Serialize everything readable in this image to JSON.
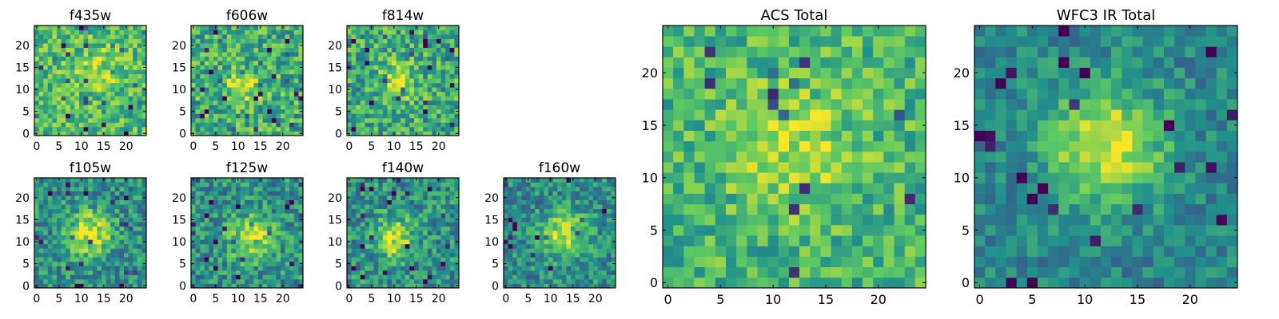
{
  "colormap": [
    "#440154",
    "#3b528b",
    "#21918c",
    "#5ec962",
    "#fde725"
  ],
  "chart_data": [
    {
      "type": "heatmap",
      "title": "f435w",
      "xticks": [
        0,
        5,
        10,
        15,
        20
      ],
      "yticks": [
        0,
        5,
        10,
        15,
        20
      ],
      "xlim": [
        -0.5,
        24.5
      ],
      "ylim": [
        -0.5,
        24.5
      ],
      "grid_size": [
        25,
        25
      ],
      "peak": {
        "x": 14,
        "y": 15,
        "sigma": 4.0,
        "amplitude": 0.15
      },
      "base_level": 0.68,
      "noise_level": 0.22
    },
    {
      "type": "heatmap",
      "title": "f606w",
      "xticks": [
        0,
        5,
        10,
        15,
        20
      ],
      "yticks": [
        0,
        5,
        10,
        15,
        20
      ],
      "xlim": [
        -0.5,
        24.5
      ],
      "ylim": [
        -0.5,
        24.5
      ],
      "grid_size": [
        25,
        25
      ],
      "peak": {
        "x": 11,
        "y": 11,
        "sigma": 3.0,
        "amplitude": 0.25
      },
      "base_level": 0.62,
      "noise_level": 0.25
    },
    {
      "type": "heatmap",
      "title": "f814w",
      "xticks": [
        0,
        5,
        10,
        15,
        20
      ],
      "yticks": [
        0,
        5,
        10,
        15,
        20
      ],
      "xlim": [
        -0.5,
        24.5
      ],
      "ylim": [
        -0.5,
        24.5
      ],
      "grid_size": [
        25,
        25
      ],
      "peak": {
        "x": 11,
        "y": 12,
        "sigma": 3.0,
        "amplitude": 0.3
      },
      "base_level": 0.6,
      "noise_level": 0.25
    },
    {
      "type": "heatmap",
      "title": "f105w",
      "xticks": [
        0,
        5,
        10,
        15,
        20
      ],
      "yticks": [
        0,
        5,
        10,
        15,
        20
      ],
      "xlim": [
        -0.5,
        24.5
      ],
      "ylim": [
        -0.5,
        24.5
      ],
      "grid_size": [
        25,
        25
      ],
      "peak": {
        "x": 12,
        "y": 12,
        "sigma": 3.5,
        "amplitude": 0.45
      },
      "base_level": 0.5,
      "noise_level": 0.22
    },
    {
      "type": "heatmap",
      "title": "f125w",
      "xticks": [
        0,
        5,
        10,
        15,
        20
      ],
      "yticks": [
        0,
        5,
        10,
        15,
        20
      ],
      "xlim": [
        -0.5,
        24.5
      ],
      "ylim": [
        -0.5,
        24.5
      ],
      "grid_size": [
        25,
        25
      ],
      "peak": {
        "x": 13,
        "y": 11,
        "sigma": 3.5,
        "amplitude": 0.4
      },
      "base_level": 0.5,
      "noise_level": 0.22
    },
    {
      "type": "heatmap",
      "title": "f140w",
      "xticks": [
        0,
        5,
        10,
        15,
        20
      ],
      "yticks": [
        0,
        5,
        10,
        15,
        20
      ],
      "xlim": [
        -0.5,
        24.5
      ],
      "ylim": [
        -0.5,
        24.5
      ],
      "grid_size": [
        25,
        25
      ],
      "peak": {
        "x": 10,
        "y": 11,
        "sigma": 3.0,
        "amplitude": 0.45
      },
      "base_level": 0.5,
      "noise_level": 0.22
    },
    {
      "type": "heatmap",
      "title": "f160w",
      "xticks": [
        0,
        5,
        10,
        15,
        20
      ],
      "yticks": [
        0,
        5,
        10,
        15,
        20
      ],
      "xlim": [
        -0.5,
        24.5
      ],
      "ylim": [
        -0.5,
        24.5
      ],
      "grid_size": [
        25,
        25
      ],
      "peak": {
        "x": 13,
        "y": 12,
        "sigma": 3.5,
        "amplitude": 0.45
      },
      "base_level": 0.48,
      "noise_level": 0.2
    },
    {
      "type": "heatmap",
      "title": "ACS Total",
      "xticks": [
        0,
        5,
        10,
        15,
        20
      ],
      "yticks": [
        0,
        5,
        10,
        15,
        20
      ],
      "xlim": [
        -0.5,
        24.5
      ],
      "ylim": [
        -0.5,
        24.5
      ],
      "grid_size": [
        25,
        25
      ],
      "peak": {
        "x": 12,
        "y": 13,
        "sigma": 4.0,
        "amplitude": 0.25
      },
      "base_level": 0.66,
      "noise_level": 0.2
    },
    {
      "type": "heatmap",
      "title": "WFC3 IR Total",
      "xticks": [
        0,
        5,
        10,
        15,
        20
      ],
      "yticks": [
        0,
        5,
        10,
        15,
        20
      ],
      "xlim": [
        -0.5,
        24.5
      ],
      "ylim": [
        -0.5,
        24.5
      ],
      "grid_size": [
        25,
        25
      ],
      "peak": {
        "x": 12,
        "y": 13,
        "sigma": 4.0,
        "amplitude": 0.5
      },
      "base_level": 0.45,
      "noise_level": 0.15
    }
  ]
}
